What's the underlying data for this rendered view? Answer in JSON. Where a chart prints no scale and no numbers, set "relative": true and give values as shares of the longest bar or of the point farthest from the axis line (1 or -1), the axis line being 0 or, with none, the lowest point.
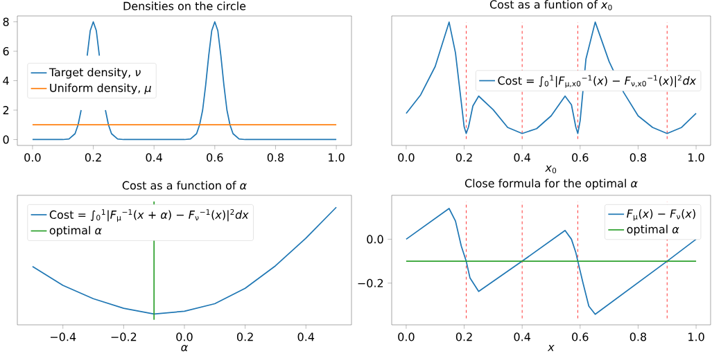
{
  "chart_data": [
    {
      "type": "line",
      "title": "Densities on the circle",
      "xlim": [
        -0.05,
        1.05
      ],
      "ylim": [
        -0.4,
        8.4
      ],
      "xticks": [
        {
          "value": 0,
          "label": "0.0"
        },
        0.2,
        0.4,
        0.6,
        0.8,
        {
          "value": 1,
          "label": "1.0"
        }
      ],
      "yticks": [
        0,
        2,
        4,
        6,
        8
      ],
      "legend": "left",
      "series": [
        {
          "name": "Target density, *ν*",
          "color": "#1f77b4",
          "x": [
            0,
            0.1,
            0.12,
            0.14,
            0.15,
            0.16,
            0.17,
            0.18,
            0.19,
            0.2,
            0.21,
            0.22,
            0.23,
            0.24,
            0.25,
            0.26,
            0.28,
            0.3,
            0.5,
            0.52,
            0.54,
            0.55,
            0.56,
            0.57,
            0.58,
            0.59,
            0.6,
            0.61,
            0.62,
            0.63,
            0.64,
            0.65,
            0.66,
            0.68,
            0.7,
            1.0
          ],
          "values": [
            0,
            0,
            0.04,
            0.4,
            1.0,
            2.0,
            null,
            5.7,
            7.4,
            8,
            7.4,
            5.7,
            null,
            2.0,
            1.0,
            0.4,
            0.04,
            0,
            0,
            0.04,
            0.4,
            1.0,
            2.0,
            3.7,
            5.7,
            7.4,
            8,
            7.4,
            5.7,
            3.7,
            2.0,
            1.0,
            0.4,
            0.04,
            0,
            0
          ]
        },
        {
          "name": "Uniform density, *μ*",
          "color": "#ff7f0e",
          "x": [
            0,
            1
          ],
          "values": [
            1,
            1
          ]
        }
      ]
    },
    {
      "type": "line",
      "title": "Cost as a funtion of *x*$_{0}$",
      "xlabel": "*x*$_{0}$",
      "relative": true,
      "xlim": [
        -0.05,
        1.05
      ],
      "xticks": [
        {
          "value": 0,
          "label": "0.0"
        },
        0.2,
        0.4,
        0.6,
        0.8,
        {
          "value": 1,
          "label": "1.0"
        }
      ],
      "legend": "right",
      "ref_lines": [
        {
          "axis": "x",
          "value": 0.207,
          "color": "#ff0000",
          "line_style": "dashed"
        },
        {
          "axis": "x",
          "value": 0.4,
          "color": "#ff0000",
          "line_style": "dashed"
        },
        {
          "axis": "x",
          "value": 0.592,
          "color": "#ff0000",
          "line_style": "dashed"
        },
        {
          "axis": "x",
          "value": 0.9,
          "color": "#ff0000",
          "line_style": "dashed"
        }
      ],
      "series": [
        {
          "name": "Cost = ∫$_{0}$$^{1}$|*F*$_{μ,x0}$$^{−1}$(*x*) − *F*$_{ν,x0}$$^{−1}$(*x*)|$^{2}$*dx*",
          "color": "#1f77b4",
          "x": [
            0,
            0.05,
            0.1,
            0.148,
            0.17,
            0.19,
            0.2,
            0.207,
            0.215,
            0.23,
            0.25,
            0.3,
            0.35,
            0.4,
            0.45,
            0.5,
            0.548,
            0.57,
            0.585,
            0.592,
            0.6,
            0.62,
            0.652,
            0.7,
            0.75,
            0.8,
            0.85,
            0.9,
            0.95,
            1.0
          ],
          "values": [
            0.26,
            0.41,
            0.64,
            1.0,
            0.75,
            0.35,
            0.15,
            0.097,
            0.15,
            0.32,
            0.4,
            0.29,
            0.146,
            0.097,
            0.136,
            0.24,
            0.4,
            0.33,
            0.15,
            0.097,
            0.2,
            0.7,
            1.0,
            0.68,
            0.43,
            0.24,
            0.146,
            0.097,
            0.146,
            0.26
          ]
        }
      ]
    },
    {
      "type": "line",
      "title": "Cost as a function of *α*",
      "xlabel": "*α*",
      "relative": true,
      "xlim": [
        -0.55,
        0.55
      ],
      "xticks": [
        {
          "value": -0.4,
          "label": "−0.4"
        },
        {
          "value": -0.2,
          "label": "−0.2"
        },
        {
          "value": 0,
          "label": "0.0"
        },
        0.2,
        0.4
      ],
      "legend": "top left",
      "series": [
        {
          "name": "Cost = ∫$_{0}$$^{1}$|*F*$_{μ}$$^{−1}$(*x* + *α*) − *F*$_{ν}$$^{−1}$(*x*)|$^{2}$*dx*",
          "color": "#1f77b4",
          "x": [
            -0.5,
            -0.4,
            -0.3,
            -0.2,
            -0.1,
            0,
            0.1,
            0.2,
            0.3,
            0.4,
            0.5
          ],
          "values": [
            0.473,
            0.32,
            0.212,
            0.134,
            0.088,
            0.11,
            0.171,
            0.296,
            0.479,
            0.702,
            0.953
          ]
        },
        {
          "name": "optimal *α*",
          "color": "#2ca02c",
          "x": [
            -0.1,
            -0.1
          ],
          "values": [
            0.041,
            1
          ]
        }
      ]
    },
    {
      "type": "line",
      "title": "Close formula for the optimal *α*",
      "xlabel": "*x*",
      "xlim": [
        -0.05,
        1.05
      ],
      "ylim": [
        -0.39,
        0.2
      ],
      "xticks": [
        {
          "value": 0,
          "label": "0.0"
        },
        0.2,
        0.4,
        0.6,
        0.8,
        {
          "value": 1,
          "label": "1.0"
        }
      ],
      "yticks": [
        {
          "value": -0.2,
          "label": "−0.2"
        },
        {
          "value": 0,
          "label": "0.0"
        }
      ],
      "legend": "top right",
      "ref_lines": [
        {
          "axis": "x",
          "value": 0.207,
          "color": "#ff0000",
          "line_style": "dashed"
        },
        {
          "axis": "x",
          "value": 0.4,
          "color": "#ff0000",
          "line_style": "dashed"
        },
        {
          "axis": "x",
          "value": 0.592,
          "color": "#ff0000",
          "line_style": "dashed"
        },
        {
          "axis": "x",
          "value": 0.9,
          "color": "#ff0000",
          "line_style": "dashed"
        }
      ],
      "series": [
        {
          "name": "*F*$_{μ}$(*x*) − *F*$_{ν}$(*x*)",
          "color": "#1f77b4",
          "x": [
            0,
            0.148,
            0.17,
            0.19,
            0.207,
            0.22,
            0.25,
            0.4,
            0.548,
            0.57,
            0.585,
            0.592,
            0.61,
            0.63,
            0.652,
            0.9,
            1.0
          ],
          "values": [
            0,
            0.14,
            0.083,
            -0.031,
            -0.1,
            -0.176,
            -0.238,
            -0.1,
            0.04,
            0.0,
            -0.06,
            -0.1,
            -0.2,
            -0.305,
            -0.342,
            -0.1,
            0.0
          ]
        },
        {
          "name": "optimal *α*",
          "color": "#2ca02c",
          "x": [
            0,
            1
          ],
          "values": [
            -0.1,
            -0.1
          ]
        }
      ]
    }
  ]
}
